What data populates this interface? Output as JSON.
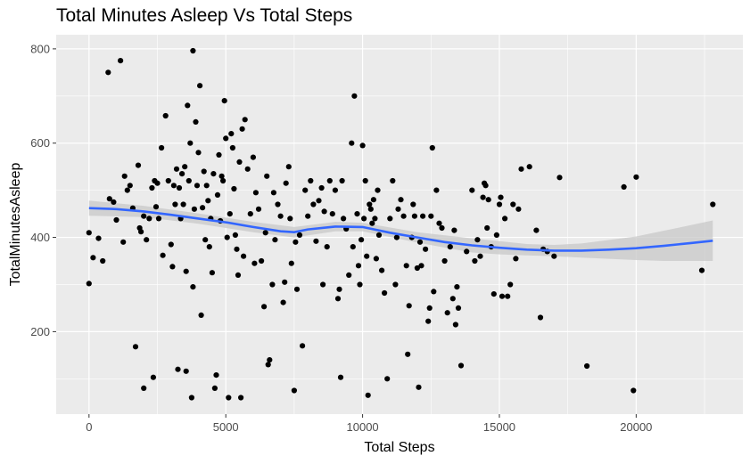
{
  "chart_data": {
    "type": "scatter",
    "title": "Total Minutes Asleep Vs Total Steps",
    "xlabel": "Total Steps",
    "ylabel": "TotalMinutesAsleep",
    "xlim": [
      -1200,
      23900
    ],
    "ylim": [
      25,
      830
    ],
    "x_ticks": [
      0,
      5000,
      10000,
      15000,
      20000
    ],
    "y_ticks": [
      200,
      400,
      600,
      800
    ],
    "x_tick_labels": [
      "0",
      "5000",
      "10000",
      "15000",
      "20000"
    ],
    "y_tick_labels": [
      "200",
      "400",
      "600",
      "800"
    ],
    "grid": true,
    "legend": "none",
    "colors": {
      "panel": "#ebebeb",
      "grid": "#ffffff",
      "point": "#000000",
      "smooth_line": "#3366ff",
      "ribbon": "#c8c8c8"
    },
    "points": [
      [
        0,
        410
      ],
      [
        0,
        302
      ],
      [
        150,
        357
      ],
      [
        350,
        398
      ],
      [
        500,
        350
      ],
      [
        700,
        750
      ],
      [
        750,
        482
      ],
      [
        900,
        475
      ],
      [
        1000,
        437
      ],
      [
        1150,
        775
      ],
      [
        1250,
        390
      ],
      [
        1300,
        530
      ],
      [
        1400,
        500
      ],
      [
        1500,
        510
      ],
      [
        1600,
        462
      ],
      [
        1700,
        168
      ],
      [
        1800,
        553
      ],
      [
        1850,
        420
      ],
      [
        1900,
        412
      ],
      [
        2000,
        445
      ],
      [
        2000,
        80
      ],
      [
        2100,
        395
      ],
      [
        2200,
        440
      ],
      [
        2300,
        505
      ],
      [
        2350,
        103
      ],
      [
        2400,
        520
      ],
      [
        2450,
        465
      ],
      [
        2500,
        515
      ],
      [
        2550,
        440
      ],
      [
        2650,
        590
      ],
      [
        2700,
        362
      ],
      [
        2800,
        658
      ],
      [
        2900,
        520
      ],
      [
        3000,
        385
      ],
      [
        3050,
        338
      ],
      [
        3100,
        510
      ],
      [
        3150,
        470
      ],
      [
        3200,
        545
      ],
      [
        3250,
        120
      ],
      [
        3300,
        505
      ],
      [
        3350,
        440
      ],
      [
        3400,
        535
      ],
      [
        3450,
        470
      ],
      [
        3500,
        550
      ],
      [
        3550,
        116
      ],
      [
        3550,
        328
      ],
      [
        3600,
        680
      ],
      [
        3650,
        520
      ],
      [
        3700,
        600
      ],
      [
        3750,
        60
      ],
      [
        3800,
        796
      ],
      [
        3800,
        295
      ],
      [
        3850,
        460
      ],
      [
        3900,
        645
      ],
      [
        3950,
        510
      ],
      [
        4000,
        580
      ],
      [
        4050,
        722
      ],
      [
        4100,
        235
      ],
      [
        4150,
        463
      ],
      [
        4200,
        540
      ],
      [
        4250,
        395
      ],
      [
        4300,
        510
      ],
      [
        4350,
        478
      ],
      [
        4400,
        380
      ],
      [
        4450,
        440
      ],
      [
        4500,
        325
      ],
      [
        4550,
        535
      ],
      [
        4600,
        80
      ],
      [
        4650,
        108
      ],
      [
        4700,
        490
      ],
      [
        4750,
        575
      ],
      [
        4800,
        435
      ],
      [
        4850,
        530
      ],
      [
        4900,
        520
      ],
      [
        4950,
        690
      ],
      [
        5000,
        610
      ],
      [
        5050,
        400
      ],
      [
        5100,
        60
      ],
      [
        5150,
        450
      ],
      [
        5200,
        620
      ],
      [
        5250,
        590
      ],
      [
        5300,
        503
      ],
      [
        5350,
        405
      ],
      [
        5400,
        375
      ],
      [
        5450,
        320
      ],
      [
        5500,
        560
      ],
      [
        5550,
        60
      ],
      [
        5600,
        630
      ],
      [
        5650,
        360
      ],
      [
        5700,
        650
      ],
      [
        5800,
        545
      ],
      [
        5900,
        450
      ],
      [
        6000,
        570
      ],
      [
        6050,
        345
      ],
      [
        6100,
        495
      ],
      [
        6200,
        460
      ],
      [
        6300,
        350
      ],
      [
        6400,
        253
      ],
      [
        6450,
        410
      ],
      [
        6500,
        530
      ],
      [
        6550,
        130
      ],
      [
        6600,
        140
      ],
      [
        6700,
        300
      ],
      [
        6750,
        495
      ],
      [
        6800,
        395
      ],
      [
        6900,
        470
      ],
      [
        7000,
        445
      ],
      [
        7100,
        262
      ],
      [
        7150,
        305
      ],
      [
        7200,
        515
      ],
      [
        7300,
        550
      ],
      [
        7350,
        440
      ],
      [
        7400,
        345
      ],
      [
        7500,
        75
      ],
      [
        7550,
        390
      ],
      [
        7600,
        290
      ],
      [
        7700,
        405
      ],
      [
        7800,
        170
      ],
      [
        7900,
        500
      ],
      [
        8000,
        445
      ],
      [
        8100,
        520
      ],
      [
        8200,
        470
      ],
      [
        8300,
        392
      ],
      [
        8400,
        478
      ],
      [
        8500,
        505
      ],
      [
        8550,
        300
      ],
      [
        8600,
        455
      ],
      [
        8700,
        380
      ],
      [
        8800,
        520
      ],
      [
        8900,
        450
      ],
      [
        9000,
        500
      ],
      [
        9100,
        270
      ],
      [
        9150,
        290
      ],
      [
        9200,
        103
      ],
      [
        9250,
        520
      ],
      [
        9300,
        440
      ],
      [
        9400,
        418
      ],
      [
        9500,
        320
      ],
      [
        9600,
        600
      ],
      [
        9650,
        380
      ],
      [
        9700,
        700
      ],
      [
        9800,
        450
      ],
      [
        9850,
        340
      ],
      [
        9900,
        300
      ],
      [
        9950,
        395
      ],
      [
        10000,
        595
      ],
      [
        10050,
        440
      ],
      [
        10100,
        520
      ],
      [
        10150,
        360
      ],
      [
        10200,
        65
      ],
      [
        10250,
        470
      ],
      [
        10300,
        460
      ],
      [
        10350,
        430
      ],
      [
        10400,
        480
      ],
      [
        10450,
        440
      ],
      [
        10500,
        355
      ],
      [
        10550,
        500
      ],
      [
        10600,
        405
      ],
      [
        10700,
        330
      ],
      [
        10800,
        282
      ],
      [
        10900,
        100
      ],
      [
        11000,
        440
      ],
      [
        11100,
        520
      ],
      [
        11200,
        300
      ],
      [
        11250,
        400
      ],
      [
        11300,
        460
      ],
      [
        11400,
        480
      ],
      [
        11500,
        445
      ],
      [
        11600,
        340
      ],
      [
        11650,
        152
      ],
      [
        11700,
        255
      ],
      [
        11800,
        400
      ],
      [
        11850,
        470
      ],
      [
        11900,
        445
      ],
      [
        12000,
        335
      ],
      [
        12050,
        82
      ],
      [
        12100,
        390
      ],
      [
        12150,
        340
      ],
      [
        12200,
        445
      ],
      [
        12300,
        375
      ],
      [
        12400,
        222
      ],
      [
        12450,
        250
      ],
      [
        12500,
        445
      ],
      [
        12550,
        590
      ],
      [
        12600,
        285
      ],
      [
        12700,
        500
      ],
      [
        12800,
        430
      ],
      [
        12900,
        420
      ],
      [
        13000,
        350
      ],
      [
        13100,
        240
      ],
      [
        13200,
        380
      ],
      [
        13300,
        270
      ],
      [
        13350,
        415
      ],
      [
        13400,
        215
      ],
      [
        13450,
        295
      ],
      [
        13500,
        250
      ],
      [
        13600,
        128
      ],
      [
        13800,
        370
      ],
      [
        14000,
        500
      ],
      [
        14100,
        350
      ],
      [
        14200,
        395
      ],
      [
        14300,
        360
      ],
      [
        14400,
        485
      ],
      [
        14450,
        515
      ],
      [
        14500,
        510
      ],
      [
        14550,
        420
      ],
      [
        14600,
        480
      ],
      [
        14700,
        380
      ],
      [
        14800,
        280
      ],
      [
        14900,
        405
      ],
      [
        15000,
        470
      ],
      [
        15050,
        485
      ],
      [
        15100,
        275
      ],
      [
        15200,
        440
      ],
      [
        15300,
        275
      ],
      [
        15400,
        300
      ],
      [
        15500,
        470
      ],
      [
        15600,
        355
      ],
      [
        15700,
        460
      ],
      [
        15800,
        545
      ],
      [
        16100,
        550
      ],
      [
        16350,
        415
      ],
      [
        16500,
        230
      ],
      [
        16600,
        375
      ],
      [
        16750,
        370
      ],
      [
        17000,
        360
      ],
      [
        17200,
        527
      ],
      [
        18200,
        127
      ],
      [
        19550,
        507
      ],
      [
        19900,
        75
      ],
      [
        20000,
        528
      ],
      [
        22400,
        330
      ],
      [
        22800,
        470
      ]
    ],
    "smooth_line": [
      [
        0,
        462
      ],
      [
        1000,
        460
      ],
      [
        2000,
        455
      ],
      [
        3000,
        448
      ],
      [
        4000,
        440
      ],
      [
        5000,
        432
      ],
      [
        6000,
        422
      ],
      [
        7000,
        413
      ],
      [
        7500,
        411
      ],
      [
        8000,
        417
      ],
      [
        9000,
        423
      ],
      [
        10000,
        422
      ],
      [
        11000,
        410
      ],
      [
        12000,
        400
      ],
      [
        13000,
        390
      ],
      [
        14000,
        383
      ],
      [
        15000,
        378
      ],
      [
        16000,
        374
      ],
      [
        17000,
        372
      ],
      [
        18000,
        372
      ],
      [
        19000,
        374
      ],
      [
        20000,
        377
      ],
      [
        21000,
        382
      ],
      [
        22000,
        388
      ],
      [
        22800,
        393
      ]
    ],
    "smooth_band": [
      [
        0,
        446,
        478
      ],
      [
        2000,
        443,
        467
      ],
      [
        4000,
        429,
        451
      ],
      [
        6000,
        411,
        433
      ],
      [
        7500,
        400,
        422
      ],
      [
        9000,
        413,
        433
      ],
      [
        10000,
        413,
        431
      ],
      [
        12000,
        389,
        411
      ],
      [
        14000,
        368,
        398
      ],
      [
        15000,
        364,
        392
      ],
      [
        16000,
        362,
        386
      ],
      [
        17000,
        360,
        384
      ],
      [
        18000,
        357,
        387
      ],
      [
        20000,
        352,
        402
      ],
      [
        21000,
        350,
        414
      ],
      [
        22000,
        350,
        426
      ],
      [
        22800,
        350,
        436
      ]
    ]
  }
}
